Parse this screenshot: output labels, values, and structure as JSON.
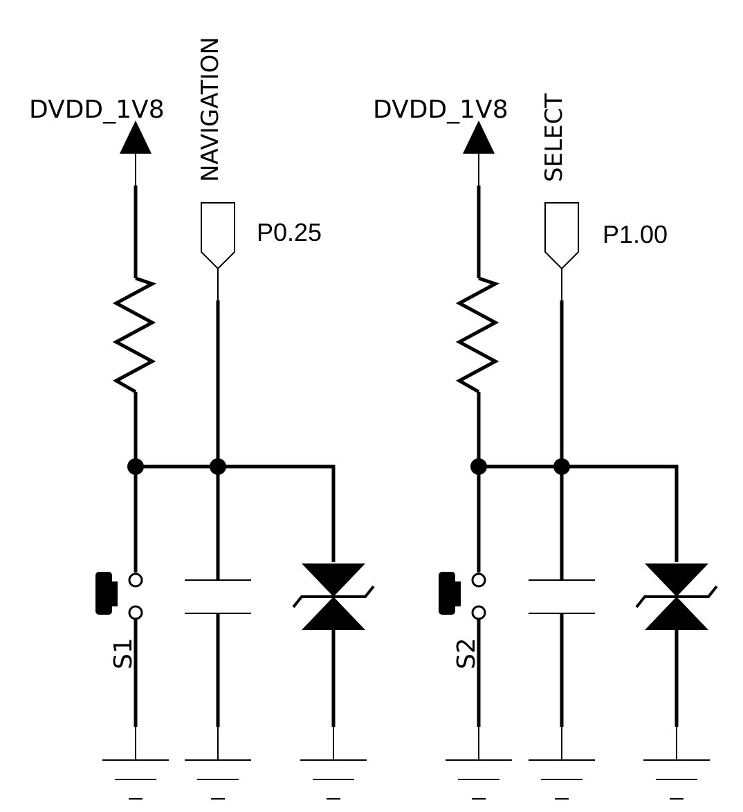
{
  "colors": {
    "line": "#000000",
    "background": "#ffffff"
  },
  "circuits": [
    {
      "power_label": "DVDD_1V8",
      "net_label": "NAVIGATION",
      "pin_label": "P0.25",
      "switch_label": "S1"
    },
    {
      "power_label": "DVDD_1V8",
      "net_label": "SELECT",
      "pin_label": "P1.00",
      "switch_label": "S2"
    }
  ]
}
